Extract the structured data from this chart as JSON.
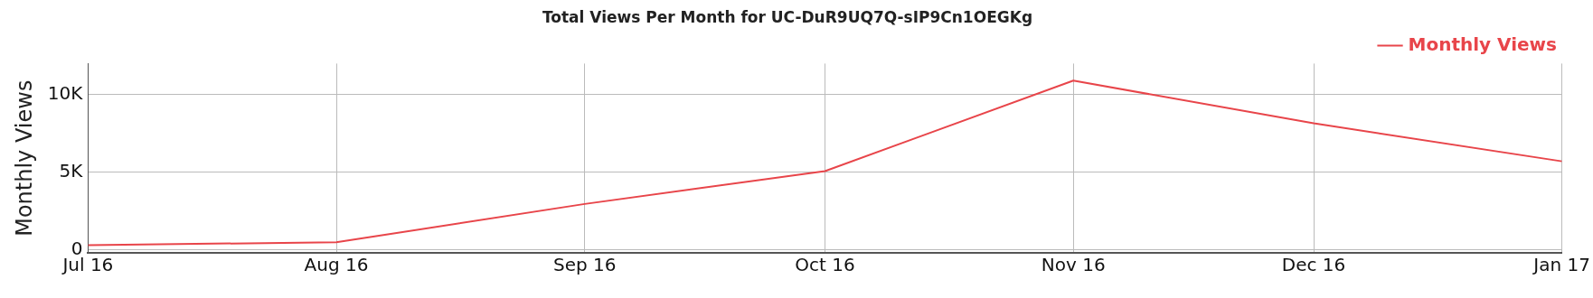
{
  "chart_data": {
    "type": "line",
    "title": "Total Views Per Month for UC-DuR9UQ7Q-sIP9Cn1OEGKg",
    "ylabel": "Monthly Views",
    "x": [
      "2016-07",
      "2016-08",
      "2016-09",
      "2016-10",
      "2016-11",
      "2016-12",
      "2017-01"
    ],
    "series": [
      {
        "name": "Monthly Views",
        "color": "#e8454a",
        "values": [
          300,
          480,
          2950,
          5070,
          10900,
          8150,
          5700
        ]
      }
    ],
    "xlim": [
      "2016-07",
      "2017-01"
    ],
    "xticks": [
      {
        "value": "2016-07",
        "label": "Jul 16"
      },
      {
        "value": "2016-08",
        "label": "Aug 16"
      },
      {
        "value": "2016-09",
        "label": "Sep 16"
      },
      {
        "value": "2016-10",
        "label": "Oct 16"
      },
      {
        "value": "2016-11",
        "label": "Nov 16"
      },
      {
        "value": "2016-12",
        "label": "Dec 16"
      },
      {
        "value": "2017-01",
        "label": "Jan 17"
      }
    ],
    "ylim": [
      -200,
      12000
    ],
    "yticks": [
      {
        "value": 0,
        "label": "0"
      },
      {
        "value": 5000,
        "label": "5K"
      },
      {
        "value": 10000,
        "label": "10K"
      }
    ],
    "grid": true,
    "legend": "top right",
    "marker": "none",
    "line_style": "solid"
  }
}
